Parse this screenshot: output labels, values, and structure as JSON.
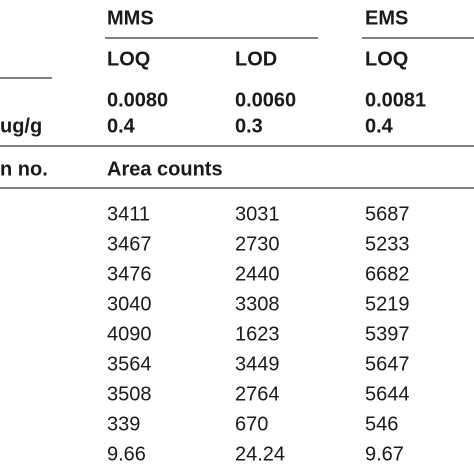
{
  "table": {
    "groups": [
      "MMS",
      "EMS"
    ],
    "subheaders": [
      "LOQ",
      "LOD",
      "LOQ"
    ],
    "limit_rows": [
      {
        "label": null,
        "cells": [
          "0.0080",
          "0.0060",
          "0.0081"
        ]
      },
      {
        "label": "ug/g",
        "cells": [
          "0.4",
          "0.3",
          "0.4"
        ]
      }
    ],
    "section_label": "n no.",
    "section_title": "Area counts",
    "rows": [
      [
        "3411",
        "3031",
        "5687"
      ],
      [
        "3467",
        "2730",
        "5233"
      ],
      [
        "3476",
        "2440",
        "6682"
      ],
      [
        "3040",
        "3308",
        "5219"
      ],
      [
        "4090",
        "1623",
        "5397"
      ],
      [
        "3564",
        "3449",
        "5647"
      ],
      [
        "3508",
        "2764",
        "5644"
      ],
      [
        "339",
        "670",
        "546"
      ],
      [
        "9.66",
        "24.24",
        "9.67"
      ]
    ]
  }
}
